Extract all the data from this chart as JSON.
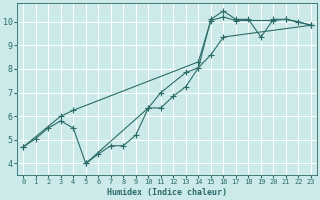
{
  "xlabel": "Humidex (Indice chaleur)",
  "bg_color": "#cceaea",
  "grid_color": "#ffffff",
  "line_color": "#2a6b68",
  "xlim": [
    -0.5,
    23.5
  ],
  "ylim": [
    3.5,
    10.8
  ],
  "xticks": [
    0,
    1,
    2,
    3,
    4,
    5,
    6,
    7,
    8,
    9,
    10,
    11,
    12,
    13,
    14,
    15,
    16,
    17,
    18,
    19,
    20,
    21,
    22,
    23
  ],
  "yticks": [
    4,
    5,
    6,
    7,
    8,
    9,
    10
  ],
  "line1_x": [
    0,
    1,
    2,
    3,
    4,
    5,
    10,
    11,
    13,
    14,
    15,
    16,
    17,
    18,
    19,
    20,
    21,
    22,
    23
  ],
  "line1_y": [
    4.7,
    5.05,
    5.5,
    5.8,
    5.5,
    4.0,
    6.35,
    7.0,
    7.85,
    8.05,
    10.1,
    10.45,
    10.1,
    10.1,
    9.35,
    10.1,
    10.1,
    10.0,
    9.85
  ],
  "line2_x": [
    0,
    3,
    4,
    14,
    15,
    16,
    17,
    20,
    21,
    23
  ],
  "line2_y": [
    4.7,
    6.0,
    6.25,
    8.3,
    10.05,
    10.2,
    10.05,
    10.05,
    10.1,
    9.85
  ],
  "line3_x": [
    5,
    6,
    7,
    8,
    9,
    10,
    11,
    12,
    13,
    14,
    15,
    16,
    23
  ],
  "line3_y": [
    4.0,
    4.4,
    4.75,
    4.75,
    5.2,
    6.35,
    6.35,
    6.85,
    7.25,
    8.05,
    8.6,
    9.35,
    9.85
  ]
}
